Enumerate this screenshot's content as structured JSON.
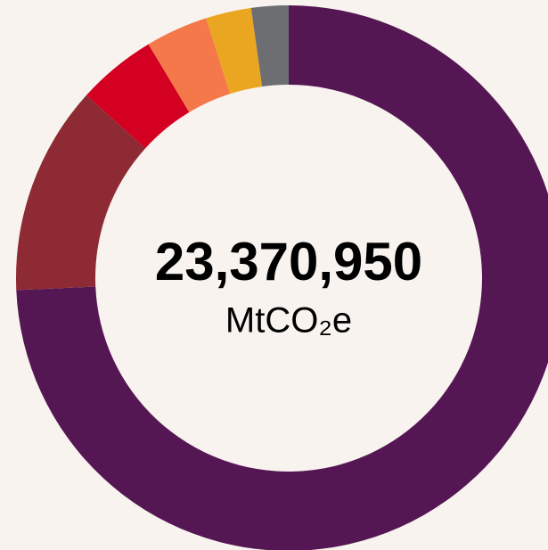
{
  "chart_data": {
    "type": "pie",
    "donut": true,
    "values": [
      74.3,
      12.4,
      4.7,
      3.7,
      2.7,
      2.2
    ],
    "colors": [
      "#551654",
      "#8e2a33",
      "#d30022",
      "#f4784a",
      "#eaa621",
      "#6d6e71"
    ],
    "center_value": "23,370,950",
    "center_unit": "MtCO₂e"
  }
}
